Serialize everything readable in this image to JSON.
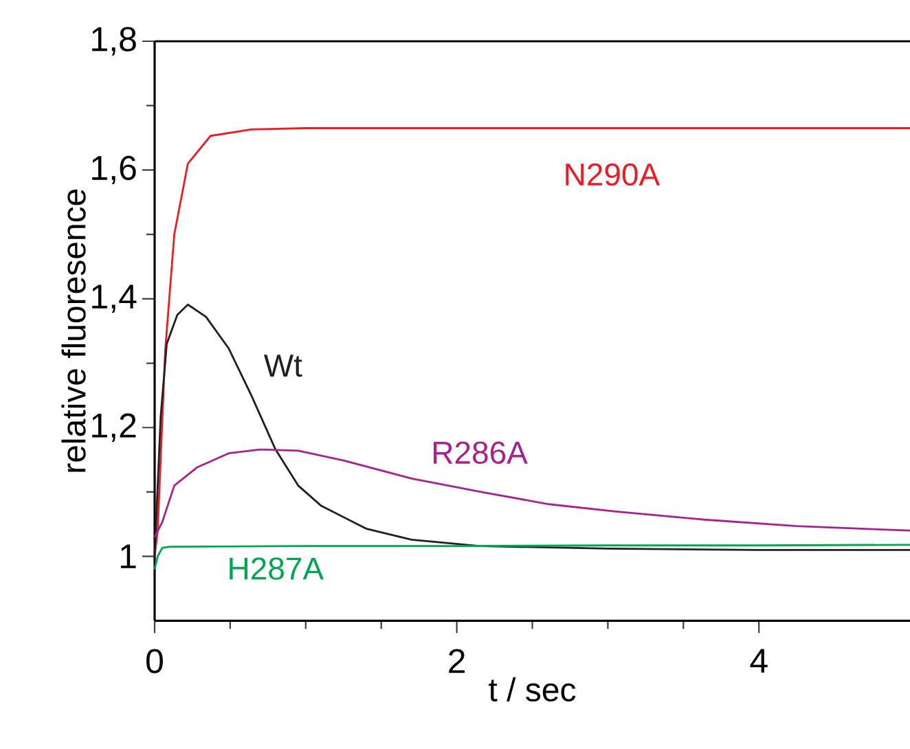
{
  "chart_data": {
    "type": "line",
    "xlabel": "t / sec",
    "ylabel": "relative fluoresence",
    "xlim": [
      0,
      5
    ],
    "ylim": [
      0.9,
      1.8
    ],
    "xticks": [
      0,
      2,
      4
    ],
    "yticks": [
      1,
      {
        "value": 1.2,
        "label": "1,2"
      },
      {
        "value": 1.4,
        "label": "1,4"
      },
      {
        "value": 1.6,
        "label": "1,6"
      },
      {
        "value": 1.8,
        "label": "1,8"
      }
    ],
    "grid": false,
    "legend": false,
    "marker": "none",
    "line_style": "solid",
    "series": [
      {
        "name": "N290A",
        "color": "#ed1c24",
        "x": [
          0,
          0.02,
          0.07,
          0.13,
          0.22,
          0.37,
          0.64,
          1.0,
          2.0,
          3.0,
          4.0,
          5.0
        ],
        "values": [
          1.0,
          1.04,
          1.32,
          1.5,
          1.61,
          1.653,
          1.663,
          1.665,
          1.665,
          1.665,
          1.665,
          1.665
        ]
      },
      {
        "name": "Wt",
        "color": "#231f20",
        "x": [
          0,
          0.04,
          0.08,
          0.15,
          0.22,
          0.34,
          0.49,
          0.64,
          0.8,
          0.95,
          1.1,
          1.4,
          1.7,
          2.15,
          3.0,
          4.0,
          5.0
        ],
        "values": [
          1.0,
          1.217,
          1.33,
          1.375,
          1.391,
          1.372,
          1.323,
          1.25,
          1.166,
          1.11,
          1.079,
          1.043,
          1.026,
          1.016,
          1.012,
          1.01,
          1.01
        ]
      },
      {
        "name": "R286A",
        "color": "#a8228f",
        "x": [
          0,
          0.05,
          0.13,
          0.28,
          0.49,
          0.7,
          0.95,
          1.25,
          1.7,
          2.16,
          2.61,
          3.04,
          3.64,
          4.25,
          5.0
        ],
        "values": [
          1.03,
          1.053,
          1.11,
          1.138,
          1.16,
          1.166,
          1.164,
          1.149,
          1.121,
          1.1,
          1.081,
          1.07,
          1.057,
          1.047,
          1.04
        ]
      },
      {
        "name": "H287A",
        "color": "#00a650",
        "x": [
          0,
          0.02,
          0.05,
          0.1,
          1.0,
          2.0,
          3.0,
          4.0,
          5.0
        ],
        "values": [
          0.98,
          1.0,
          1.013,
          1.015,
          1.016,
          1.016,
          1.017,
          1.017,
          1.018
        ]
      }
    ]
  }
}
